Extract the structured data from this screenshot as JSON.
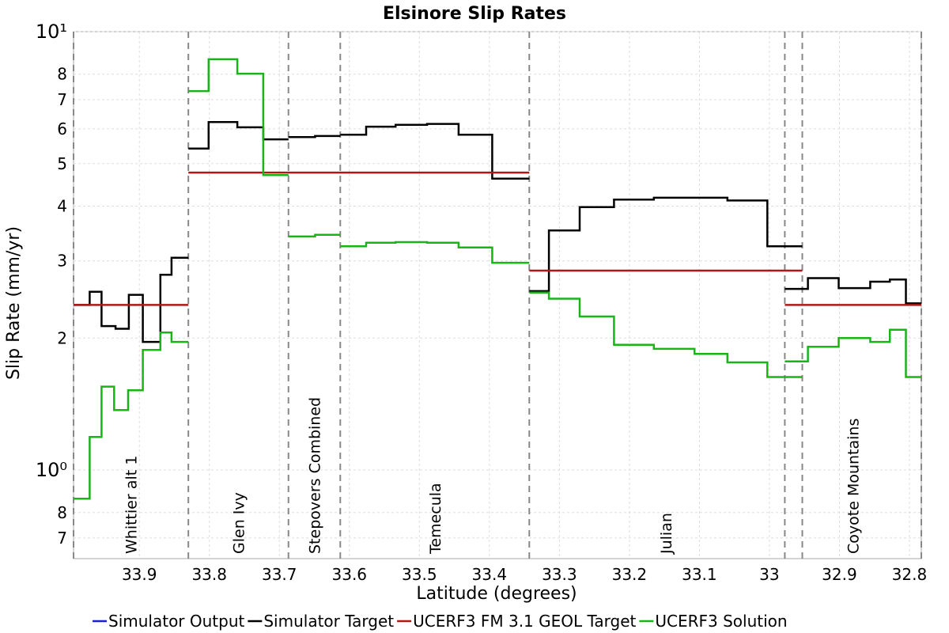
{
  "chart_data": {
    "type": "line",
    "title": "Elsinore Slip Rates",
    "x_label": "Latitude (degrees)",
    "y_label": "Slip Rate (mm/yr)",
    "log_y": true,
    "grid": true,
    "legend": "bottom",
    "xlim": [
      33.994,
      32.783
    ],
    "xticks": [
      33.9,
      33.8,
      33.7,
      33.6,
      33.5,
      33.4,
      33.3,
      33.2,
      33.1,
      33,
      32.9,
      32.8
    ],
    "ylim": [
      0.628,
      10
    ],
    "yticks": [
      {
        "value": 0.7,
        "label": "7"
      },
      {
        "value": 0.8,
        "label": "8"
      },
      {
        "value": 1,
        "label": "10⁰"
      },
      2,
      3,
      4,
      5,
      6,
      7,
      8,
      {
        "value": 10,
        "label": "10¹"
      }
    ],
    "sections": [
      {
        "name": "Whittier alt 1",
        "start": 33.994,
        "end": 33.83
      },
      {
        "name": "Glen Ivy",
        "start": 33.83,
        "end": 33.687
      },
      {
        "name": "Stepovers Combined",
        "start": 33.687,
        "end": 33.613
      },
      {
        "name": "Temecula",
        "start": 33.613,
        "end": 33.343
      },
      {
        "name": "Julian",
        "start": 33.343,
        "end": 32.953
      },
      {
        "name": "Coyote Mountains",
        "start": 32.978,
        "end": 32.783
      }
    ],
    "series": [
      {
        "name": "Simulator Output",
        "color": "#1f1fd0",
        "x": [],
        "values": []
      },
      {
        "name": "Simulator Target",
        "color": "#000000",
        "x": [
          33.994,
          33.971,
          33.971,
          33.954,
          33.954,
          33.934,
          33.934,
          33.915,
          33.915,
          33.895,
          33.895,
          33.87,
          33.87,
          33.854,
          33.854,
          33.83,
          null,
          33.83,
          33.801,
          33.801,
          33.76,
          33.76,
          33.723,
          33.723,
          33.687,
          null,
          33.687,
          33.649,
          33.649,
          33.613,
          null,
          33.613,
          33.576,
          33.576,
          33.534,
          33.534,
          33.489,
          33.489,
          33.444,
          33.444,
          33.396,
          33.396,
          33.343,
          null,
          33.343,
          33.315,
          33.315,
          33.271,
          33.271,
          33.222,
          33.222,
          33.165,
          33.165,
          33.06,
          33.06,
          33.003,
          33.003,
          32.953,
          null,
          32.978,
          32.945,
          32.945,
          32.901,
          32.901,
          32.856,
          32.856,
          32.828,
          32.828,
          32.805,
          32.805,
          32.783
        ],
        "values": [
          2.38,
          2.38,
          2.55,
          2.55,
          2.13,
          2.13,
          2.1,
          2.1,
          2.51,
          2.51,
          1.96,
          1.96,
          2.79,
          2.79,
          3.05,
          3.05,
          null,
          5.41,
          5.41,
          6.22,
          6.22,
          6.05,
          6.05,
          5.68,
          5.68,
          null,
          5.75,
          5.75,
          5.78,
          5.78,
          null,
          5.82,
          5.82,
          6.07,
          6.07,
          6.13,
          6.13,
          6.16,
          6.16,
          5.82,
          5.82,
          4.62,
          4.62,
          null,
          2.56,
          2.56,
          3.52,
          3.52,
          3.98,
          3.98,
          4.14,
          4.14,
          4.18,
          4.18,
          4.12,
          4.12,
          3.24,
          3.24,
          null,
          2.59,
          2.59,
          2.74,
          2.74,
          2.6,
          2.6,
          2.69,
          2.69,
          2.72,
          2.72,
          2.4,
          2.4
        ]
      },
      {
        "name": "UCERF3 FM 3.1 GEOL Target",
        "color": "#b01818",
        "x": [
          33.994,
          33.83,
          null,
          33.83,
          33.343,
          null,
          33.343,
          32.953,
          null,
          32.978,
          32.783
        ],
        "values": [
          2.38,
          2.38,
          null,
          4.77,
          4.77,
          null,
          2.85,
          2.85,
          null,
          2.38,
          2.38
        ]
      },
      {
        "name": "UCERF3 Solution",
        "color": "#18b418",
        "x": [
          33.994,
          33.971,
          33.971,
          33.954,
          33.954,
          33.936,
          33.936,
          33.916,
          33.916,
          33.895,
          33.895,
          33.87,
          33.87,
          33.854,
          33.854,
          33.83,
          null,
          33.83,
          33.801,
          33.801,
          33.76,
          33.76,
          33.723,
          33.723,
          33.687,
          null,
          33.687,
          33.649,
          33.649,
          33.613,
          null,
          33.613,
          33.576,
          33.576,
          33.534,
          33.534,
          33.489,
          33.489,
          33.444,
          33.444,
          33.396,
          33.396,
          33.343,
          null,
          33.343,
          33.315,
          33.315,
          33.271,
          33.271,
          33.222,
          33.222,
          33.165,
          33.165,
          33.107,
          33.107,
          33.06,
          33.06,
          33.003,
          33.003,
          32.953,
          null,
          32.978,
          32.945,
          32.945,
          32.901,
          32.901,
          32.856,
          32.856,
          32.828,
          32.828,
          32.805,
          32.805,
          32.783
        ],
        "values": [
          0.86,
          0.86,
          1.19,
          1.19,
          1.55,
          1.55,
          1.37,
          1.37,
          1.52,
          1.52,
          1.88,
          1.88,
          2.06,
          2.06,
          1.96,
          1.96,
          null,
          7.32,
          7.32,
          8.65,
          8.65,
          8.02,
          8.02,
          4.71,
          4.71,
          null,
          3.41,
          3.41,
          3.44,
          3.44,
          null,
          3.24,
          3.24,
          3.3,
          3.3,
          3.31,
          3.31,
          3.3,
          3.3,
          3.22,
          3.22,
          2.97,
          2.97,
          null,
          2.54,
          2.54,
          2.46,
          2.46,
          2.24,
          2.24,
          1.93,
          1.93,
          1.89,
          1.89,
          1.84,
          1.84,
          1.76,
          1.76,
          1.63,
          1.63,
          null,
          1.77,
          1.77,
          1.91,
          1.91,
          2.0,
          2.0,
          1.96,
          1.96,
          2.09,
          2.09,
          1.63,
          1.63
        ]
      }
    ]
  }
}
